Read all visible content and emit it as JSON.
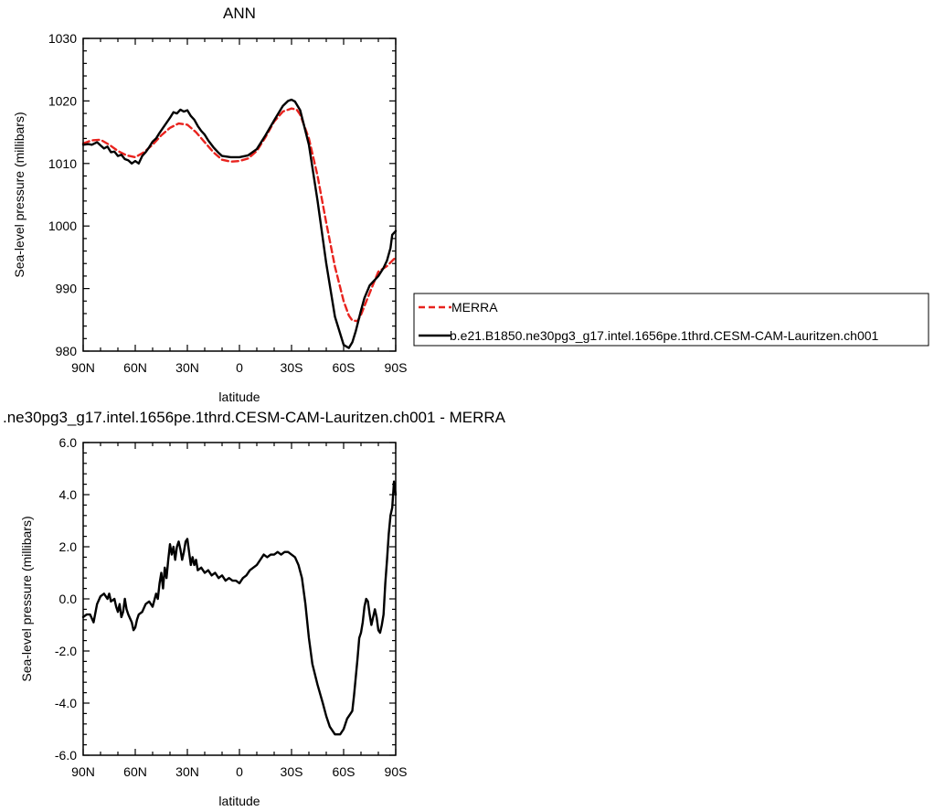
{
  "chart_data": [
    {
      "type": "line",
      "title": "ANN",
      "xlabel": "latitude",
      "ylabel": "Sea-level pressure (millibars)",
      "xlim": [
        90,
        -90
      ],
      "ylim": [
        980,
        1030
      ],
      "x_ticks": [
        90,
        60,
        30,
        0,
        -30,
        -60,
        -90
      ],
      "x_tick_labels": [
        "90N",
        "60N",
        "30N",
        "0",
        "30S",
        "60S",
        "90S"
      ],
      "y_ticks": [
        980,
        990,
        1000,
        1010,
        1020,
        1030
      ],
      "y_tick_labels": [
        "980",
        "990",
        "1000",
        "1010",
        "1020",
        "1030"
      ],
      "legend": "right",
      "series": [
        {
          "name": "MERRA",
          "color": "#e8231e",
          "dash": "dashed",
          "x": [
            90,
            85,
            80,
            75,
            70,
            65,
            60,
            55,
            50,
            45,
            40,
            35,
            30,
            25,
            20,
            15,
            10,
            5,
            0,
            -5,
            -10,
            -15,
            -20,
            -25,
            -30,
            -33,
            -35,
            -40,
            -45,
            -50,
            -55,
            -60,
            -63,
            -65,
            -68,
            -70,
            -75,
            -80,
            -85,
            -90
          ],
          "y": [
            1013.2,
            1013.7,
            1013.8,
            1013.0,
            1012.0,
            1011.3,
            1011.0,
            1011.8,
            1013.0,
            1014.5,
            1015.7,
            1016.4,
            1016.2,
            1015.0,
            1013.4,
            1011.8,
            1010.6,
            1010.3,
            1010.4,
            1010.8,
            1012.0,
            1014.2,
            1016.7,
            1018.3,
            1018.8,
            1018.6,
            1017.8,
            1014.0,
            1008.0,
            1000.5,
            993.5,
            988.0,
            985.7,
            984.9,
            984.8,
            985.8,
            989.3,
            992.7,
            993.6,
            995.0
          ]
        },
        {
          "name": "b.e21.B1850.ne30pg3_g17.intel.1656pe.1thrd.CESM-CAM-Lauritzen.ch001",
          "color": "#000000",
          "dash": "solid",
          "x": [
            90,
            87,
            85,
            82,
            80,
            78,
            76,
            74,
            72,
            70,
            68,
            66,
            64,
            62,
            60,
            58,
            56,
            54,
            52,
            50,
            48,
            46,
            44,
            42,
            40,
            38,
            36,
            34,
            32,
            30,
            28,
            26,
            24,
            22,
            20,
            18,
            15,
            12,
            10,
            5,
            0,
            -5,
            -10,
            -15,
            -20,
            -25,
            -28,
            -30,
            -32,
            -35,
            -40,
            -45,
            -50,
            -55,
            -60,
            -63,
            -65,
            -67,
            -70,
            -72,
            -75,
            -78,
            -80,
            -83,
            -85,
            -87,
            -88,
            -90
          ],
          "y": [
            1013.0,
            1013.1,
            1013.0,
            1013.4,
            1012.9,
            1012.4,
            1012.7,
            1011.8,
            1011.9,
            1011.2,
            1011.4,
            1010.7,
            1010.5,
            1010.0,
            1010.4,
            1010.0,
            1011.2,
            1011.8,
            1012.6,
            1013.5,
            1014.0,
            1014.9,
            1015.7,
            1016.5,
            1017.3,
            1018.2,
            1018.0,
            1018.6,
            1018.3,
            1018.5,
            1017.6,
            1017.0,
            1016.0,
            1015.2,
            1014.6,
            1013.7,
            1012.6,
            1011.7,
            1011.2,
            1011.0,
            1011.0,
            1011.3,
            1012.3,
            1014.5,
            1016.9,
            1019.2,
            1020.0,
            1020.2,
            1019.9,
            1018.5,
            1013.0,
            1004.0,
            994.0,
            985.5,
            981.0,
            980.5,
            981.4,
            983.2,
            986.5,
            988.5,
            990.5,
            991.4,
            992.0,
            993.3,
            994.5,
            996.5,
            998.6,
            999.2
          ]
        }
      ]
    },
    {
      "type": "line",
      "title": ".ne30pg3_g17.intel.1656pe.1thrd.CESM-CAM-Lauritzen.ch001 - MERRA",
      "xlabel": "latitude",
      "ylabel": "Sea-level pressure (millibars)",
      "xlim": [
        90,
        -90
      ],
      "ylim": [
        -6,
        6
      ],
      "x_ticks": [
        90,
        60,
        30,
        0,
        -30,
        -60,
        -90
      ],
      "x_tick_labels": [
        "90N",
        "60N",
        "30N",
        "0",
        "30S",
        "60S",
        "90S"
      ],
      "y_ticks": [
        -6,
        -4,
        -2,
        0,
        2,
        4,
        6
      ],
      "y_tick_labels": [
        "-6.0",
        "-4.0",
        "-2.0",
        "0.0",
        "2.0",
        "4.0",
        "6.0"
      ],
      "series": [
        {
          "color": "#000000",
          "x": [
            90,
            88,
            86,
            84,
            82,
            80,
            78,
            76,
            75,
            74,
            72,
            71,
            70,
            69,
            68,
            67,
            66,
            65,
            64,
            62,
            61,
            60,
            59,
            58,
            56,
            54,
            52,
            50,
            48,
            47,
            46,
            45,
            44,
            43,
            42,
            41,
            40,
            39,
            38,
            37,
            36,
            35,
            34,
            33,
            32,
            31,
            30,
            29,
            28,
            27,
            26,
            25,
            24,
            22,
            20,
            18,
            16,
            14,
            12,
            10,
            8,
            6,
            4,
            2,
            0,
            -2,
            -4,
            -6,
            -8,
            -10,
            -12,
            -14,
            -16,
            -18,
            -20,
            -22,
            -24,
            -26,
            -28,
            -30,
            -32,
            -34,
            -36,
            -38,
            -40,
            -42,
            -45,
            -48,
            -50,
            -52,
            -55,
            -58,
            -60,
            -62,
            -64,
            -65,
            -66,
            -67,
            -68,
            -69,
            -70,
            -71,
            -72,
            -73,
            -74,
            -75,
            -76,
            -77,
            -78,
            -79,
            -80,
            -81,
            -82,
            -83,
            -84,
            -85,
            -86,
            -87,
            -88,
            -89,
            -90
          ],
          "y": [
            -0.7,
            -0.6,
            -0.6,
            -0.9,
            -0.2,
            0.1,
            0.2,
            0.0,
            0.2,
            -0.1,
            0.0,
            -0.3,
            -0.5,
            -0.2,
            -0.7,
            -0.5,
            0.0,
            -0.4,
            -0.6,
            -0.9,
            -1.2,
            -1.1,
            -0.8,
            -0.6,
            -0.5,
            -0.2,
            -0.1,
            -0.3,
            0.2,
            0.0,
            0.6,
            1.0,
            0.4,
            1.2,
            0.8,
            1.5,
            2.1,
            1.7,
            2.0,
            1.5,
            2.0,
            2.2,
            1.9,
            1.5,
            1.8,
            2.2,
            2.3,
            1.8,
            1.3,
            1.6,
            1.3,
            1.5,
            1.1,
            1.2,
            1.0,
            1.1,
            0.9,
            1.0,
            0.8,
            0.9,
            0.7,
            0.8,
            0.7,
            0.7,
            0.6,
            0.8,
            0.9,
            1.1,
            1.2,
            1.3,
            1.5,
            1.7,
            1.6,
            1.7,
            1.7,
            1.8,
            1.7,
            1.8,
            1.8,
            1.7,
            1.6,
            1.3,
            0.8,
            -0.2,
            -1.5,
            -2.5,
            -3.3,
            -4.0,
            -4.5,
            -4.9,
            -5.2,
            -5.2,
            -5.0,
            -4.6,
            -4.4,
            -4.3,
            -3.7,
            -3.0,
            -2.3,
            -1.5,
            -1.3,
            -0.9,
            -0.3,
            0.0,
            -0.1,
            -0.6,
            -1.0,
            -0.7,
            -0.4,
            -0.7,
            -1.2,
            -1.3,
            -1.0,
            -0.6,
            0.6,
            1.5,
            2.5,
            3.2,
            3.5,
            4.5,
            4.0
          ]
        }
      ]
    }
  ]
}
